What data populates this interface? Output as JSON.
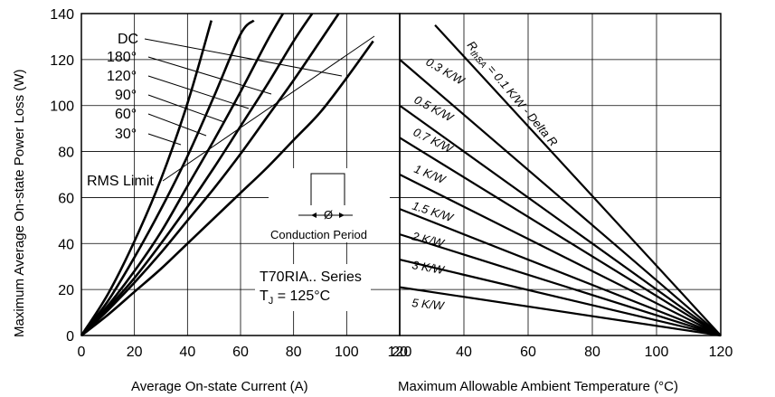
{
  "chart_data": [
    {
      "type": "line",
      "panel": "left",
      "xlabel": "Average On-state Current (A)",
      "ylabel": "Maximum Average On-state Power Loss (W)",
      "xlim": [
        0,
        120
      ],
      "ylim": [
        0,
        140
      ],
      "x_ticks": [
        "0",
        "20",
        "40",
        "60",
        "80",
        "100",
        "120"
      ],
      "y_ticks": [
        "0",
        "20",
        "40",
        "60",
        "80",
        "100",
        "120",
        "140"
      ],
      "grid": true,
      "series": [
        {
          "name": "30°",
          "x": [
            0,
            10,
            20,
            30,
            40,
            49
          ],
          "y": [
            0,
            18,
            41,
            68,
            101,
            137
          ]
        },
        {
          "name": "60°",
          "x": [
            0,
            10,
            20,
            30,
            40,
            50,
            60,
            65
          ],
          "y": [
            0,
            15,
            34,
            55,
            78,
            104,
            131,
            137
          ]
        },
        {
          "name": "90°",
          "x": [
            0,
            10,
            20,
            30,
            40,
            50,
            60,
            70,
            76
          ],
          "y": [
            0,
            13,
            28,
            45,
            65,
            85,
            106,
            128,
            140
          ]
        },
        {
          "name": "120°",
          "x": [
            0,
            10,
            20,
            30,
            40,
            50,
            60,
            70,
            80,
            87
          ],
          "y": [
            0,
            12,
            25,
            40,
            56,
            73,
            91,
            109,
            128,
            140
          ]
        },
        {
          "name": "180°",
          "x": [
            0,
            10,
            20,
            30,
            40,
            50,
            60,
            70,
            80,
            90,
            97
          ],
          "y": [
            0,
            11,
            23,
            36,
            50,
            64,
            79,
            95,
            111,
            128,
            140
          ]
        },
        {
          "name": "DC",
          "x": [
            0,
            10,
            20,
            30,
            40,
            50,
            60,
            70,
            80,
            90,
            100,
            110
          ],
          "y": [
            0,
            9,
            19,
            29,
            40,
            51,
            62,
            73,
            85,
            97,
            112,
            128
          ]
        }
      ],
      "rms_limit": {
        "name": "RMS Limit",
        "x": 110,
        "y": 128
      }
    },
    {
      "type": "line",
      "panel": "right",
      "xlabel": "Maximum Allowable Ambient Temperature (°C)",
      "xlim": [
        120,
        20
      ],
      "x_ticks": [
        "120",
        "20",
        "40",
        "60",
        "80",
        "100",
        "120"
      ],
      "series": [
        {
          "name": "R thSA = 0.1 K/W - Delta R",
          "x": [
            31,
            120
          ],
          "y": [
            135,
            0
          ]
        },
        {
          "name": "0.3 K/W",
          "x": [
            20,
            120
          ],
          "y": [
            120,
            0
          ]
        },
        {
          "name": "0.5 K/W",
          "x": [
            20,
            120
          ],
          "y": [
            100,
            0
          ]
        },
        {
          "name": "0.7 K/W",
          "x": [
            20,
            120
          ],
          "y": [
            86,
            0
          ]
        },
        {
          "name": "1 K/W",
          "x": [
            20,
            120
          ],
          "y": [
            70,
            0
          ]
        },
        {
          "name": "1.5 K/W",
          "x": [
            20,
            120
          ],
          "y": [
            55,
            0
          ]
        },
        {
          "name": "2 K/W",
          "x": [
            20,
            120
          ],
          "y": [
            44,
            0
          ]
        },
        {
          "name": "3 K/W",
          "x": [
            20,
            120
          ],
          "y": [
            33,
            0
          ]
        },
        {
          "name": "5 K/W",
          "x": [
            20,
            120
          ],
          "y": [
            21,
            0
          ]
        }
      ]
    }
  ],
  "labels": {
    "dc": "DC",
    "a180": "180°",
    "a120": "120°",
    "a90": "90°",
    "a60": "60°",
    "a30": "30°",
    "rms": "RMS Limit",
    "conduction": "Conduction Period",
    "phi": "Ø",
    "series_title": "T70RIA.. Series",
    "tj_prefix": "T",
    "tj_sub": "J",
    "tj_rest": " = 125°C",
    "rth_r": "R",
    "rth_sub": "thSA",
    "rth_rest": " = 0.1 K/W - Delta R",
    "r03": "0.3 K/W",
    "r05": "0.5 K/W",
    "r07": "0.7 K/W",
    "r1": "1 K/W",
    "r15": "1.5 K/W",
    "r2": "2 K/W",
    "r3": "3 K/W",
    "r5": "5 K/W"
  }
}
